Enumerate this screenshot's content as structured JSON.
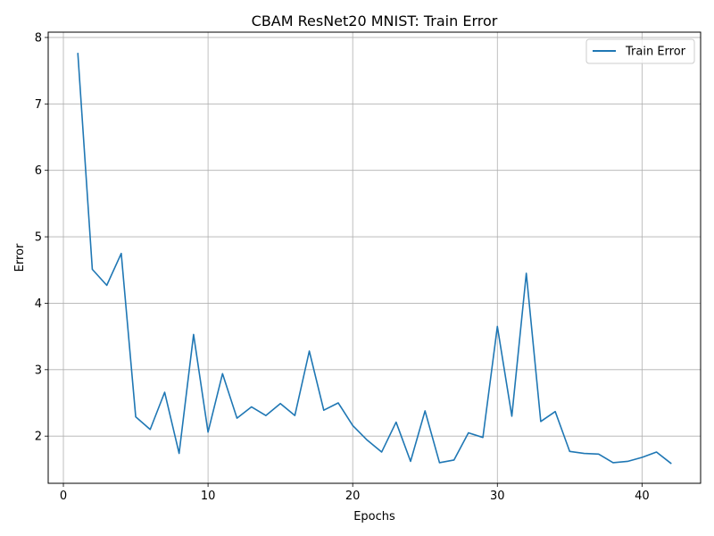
{
  "chart_data": {
    "type": "line",
    "title": "CBAM ResNet20 MNIST: Train Error",
    "xlabel": "Epochs",
    "ylabel": "Error",
    "xlim": [
      -1.05,
      44.05
    ],
    "ylim": [
      1.29,
      8.08
    ],
    "xticks": [
      0,
      10,
      20,
      30,
      40
    ],
    "yticks": [
      2,
      3,
      4,
      5,
      6,
      7,
      8
    ],
    "grid": true,
    "legend_position": "top-right",
    "series": [
      {
        "name": "Train Error",
        "color": "#1f77b4",
        "x": [
          1,
          2,
          3,
          4,
          5,
          6,
          7,
          8,
          9,
          10,
          11,
          12,
          13,
          14,
          15,
          16,
          17,
          18,
          19,
          20,
          21,
          22,
          23,
          24,
          25,
          26,
          27,
          28,
          29,
          30,
          31,
          32,
          33,
          34,
          35,
          36,
          37,
          38,
          39,
          40,
          41,
          42
        ],
        "y": [
          7.76,
          4.51,
          4.27,
          4.75,
          2.29,
          2.1,
          2.66,
          1.74,
          3.53,
          2.06,
          2.94,
          2.27,
          2.44,
          2.31,
          2.49,
          2.31,
          3.28,
          2.39,
          2.5,
          2.16,
          1.94,
          1.76,
          2.21,
          1.62,
          2.38,
          1.6,
          1.64,
          2.05,
          1.98,
          3.65,
          2.3,
          4.45,
          2.22,
          2.37,
          1.77,
          1.74,
          1.73,
          1.6,
          1.62,
          1.68,
          1.76,
          1.59
        ]
      }
    ]
  }
}
